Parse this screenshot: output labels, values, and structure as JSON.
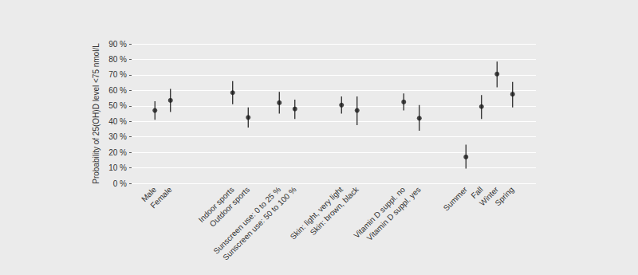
{
  "chart_data": {
    "type": "scatter",
    "ylabel": "Probability of 25(OH)D level <75 nmol/L",
    "categories": [
      null,
      "Male",
      "Female",
      null,
      null,
      null,
      "Indoor sports",
      "Outdoor sports",
      null,
      "Sunscreen use: 0 to 25 %",
      "Sunscreen use: 50 to 100 %",
      null,
      null,
      "Skin: light, very light",
      "Skin: brown, black",
      null,
      null,
      "Vitamin D suppl. no",
      "Vitamin D suppl. yes",
      null,
      null,
      "Summer",
      "Fall",
      "Winter",
      "Spring",
      null
    ],
    "values": [
      null,
      47,
      53.5,
      null,
      null,
      null,
      58.5,
      42.5,
      null,
      52,
      48,
      null,
      null,
      50.5,
      47,
      null,
      null,
      52.5,
      42,
      null,
      null,
      17,
      49.5,
      70.5,
      57.5,
      null
    ],
    "error_low": [
      null,
      41,
      46,
      null,
      null,
      null,
      51,
      36,
      null,
      45,
      41.5,
      null,
      null,
      45,
      37.5,
      null,
      null,
      47,
      34,
      null,
      null,
      9.5,
      41.5,
      62,
      49,
      null
    ],
    "error_high": [
      null,
      53,
      61,
      null,
      null,
      null,
      66,
      49,
      null,
      59,
      54,
      null,
      null,
      56,
      56,
      null,
      null,
      58,
      50.5,
      null,
      null,
      25,
      57,
      78.5,
      65.5,
      null
    ],
    "color": "#1a1a1a",
    "marker": "circle",
    "ylim": [
      0,
      90
    ],
    "yticks": [
      {
        "value": 0,
        "label": "0 %"
      },
      {
        "value": 10,
        "label": "10 %"
      },
      {
        "value": 20,
        "label": "20 %"
      },
      {
        "value": 30,
        "label": "30 %"
      },
      {
        "value": 40,
        "label": "40 %"
      },
      {
        "value": 50,
        "label": "50 %"
      },
      {
        "value": 60,
        "label": "60 %"
      },
      {
        "value": 70,
        "label": "70 %"
      },
      {
        "value": 80,
        "label": "80 %"
      },
      {
        "value": 90,
        "label": "90 %"
      }
    ],
    "grid": true
  }
}
